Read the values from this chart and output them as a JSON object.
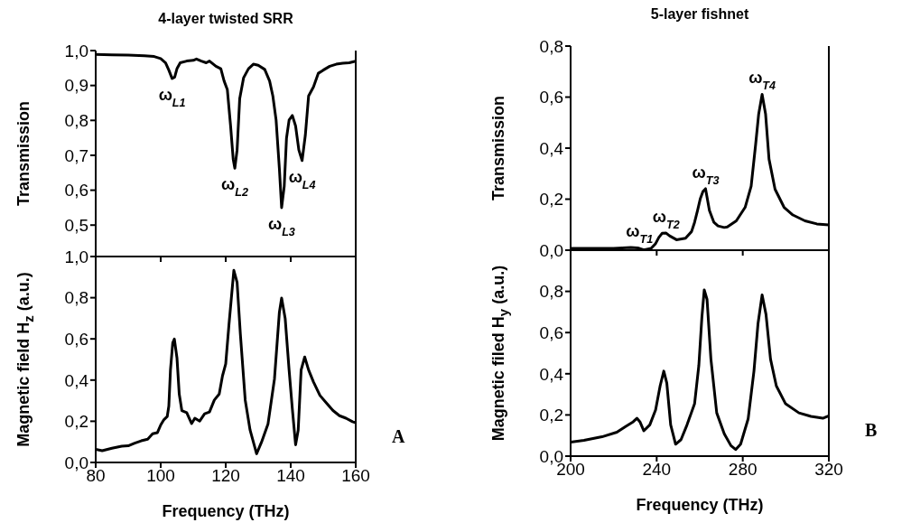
{
  "chart_data": [
    {
      "type": "line",
      "title": "4-layer twisted SRR",
      "ylabel": "Transmission",
      "x": [
        80,
        85,
        90,
        95,
        98,
        100,
        101.5,
        102.5,
        103.5,
        104.3,
        105,
        106,
        108,
        110,
        111,
        112.5,
        114,
        115,
        117,
        118.5,
        119.5,
        120.5,
        121.5,
        122.3,
        122.8,
        123.5,
        124.3,
        125.5,
        127,
        128.5,
        130,
        132,
        133.5,
        134.5,
        135.5,
        136.5,
        137.2,
        138,
        138.7,
        139.5,
        140.5,
        141.5,
        142.5,
        143.5,
        144.5,
        145.5,
        147,
        148.5,
        150,
        152,
        154,
        156,
        158,
        160
      ],
      "series": [
        {
          "color": "#000000",
          "values": [
            0.989,
            0.988,
            0.987,
            0.985,
            0.983,
            0.977,
            0.965,
            0.944,
            0.92,
            0.924,
            0.948,
            0.965,
            0.97,
            0.972,
            0.976,
            0.97,
            0.965,
            0.97,
            0.955,
            0.948,
            0.913,
            0.888,
            0.784,
            0.689,
            0.663,
            0.715,
            0.862,
            0.922,
            0.948,
            0.961,
            0.958,
            0.946,
            0.913,
            0.87,
            0.801,
            0.663,
            0.55,
            0.611,
            0.749,
            0.801,
            0.814,
            0.784,
            0.715,
            0.685,
            0.758,
            0.87,
            0.896,
            0.935,
            0.944,
            0.955,
            0.961,
            0.964,
            0.965,
            0.97
          ]
        }
      ],
      "xlim": [
        80,
        160
      ],
      "xticks": [
        80,
        100,
        120,
        140,
        160
      ],
      "ylim": [
        0.41,
        1.0
      ],
      "yticks": [
        {
          "value": 0.5,
          "label": "0,5"
        },
        {
          "value": 0.6,
          "label": "0,6"
        },
        {
          "value": 0.7,
          "label": "0,7"
        },
        {
          "value": 0.8,
          "label": "0,8"
        },
        {
          "value": 0.9,
          "label": "0,9"
        },
        {
          "value": 1.0,
          "label": "1,0"
        }
      ],
      "tick_labels": "y",
      "annotations": [
        {
          "text": "ω$_{L1}$",
          "x": 103.5,
          "y": 0.92
        },
        {
          "text": "ω$_{L2}$",
          "x": 122.8,
          "y": 0.663
        },
        {
          "text": "ω$_{L3}$",
          "x": 137.2,
          "y": 0.55
        },
        {
          "text": "ω$_{L4}$",
          "x": 143.5,
          "y": 0.685
        }
      ]
    },
    {
      "type": "line",
      "ylabel": "Magnetic field H$_{z}$ (a.u.)",
      "xlabel": "Frequency (THz)",
      "x": [
        80,
        82,
        85,
        88,
        90,
        92,
        94,
        96,
        97.5,
        99,
        100,
        101,
        102,
        102.5,
        103,
        103.7,
        104.2,
        105,
        105.7,
        106.5,
        108,
        109.5,
        110.5,
        112,
        113.5,
        115,
        116.5,
        118,
        119,
        120,
        121,
        122.5,
        123.5,
        124.5,
        126,
        127.5,
        129.5,
        131,
        133,
        135,
        136.5,
        137.2,
        138.3,
        139.5,
        140.5,
        141.5,
        142.3,
        143.2,
        144.3,
        145.5,
        147,
        149,
        151,
        153,
        155,
        157,
        159,
        160
      ],
      "series": [
        {
          "color": "#000000",
          "values": [
            0.064,
            0.057,
            0.069,
            0.079,
            0.081,
            0.094,
            0.105,
            0.113,
            0.139,
            0.145,
            0.182,
            0.208,
            0.223,
            0.274,
            0.449,
            0.581,
            0.599,
            0.508,
            0.332,
            0.252,
            0.242,
            0.189,
            0.215,
            0.201,
            0.236,
            0.245,
            0.303,
            0.332,
            0.42,
            0.479,
            0.669,
            0.933,
            0.874,
            0.625,
            0.303,
            0.157,
            0.042,
            0.098,
            0.186,
            0.406,
            0.728,
            0.798,
            0.698,
            0.449,
            0.259,
            0.086,
            0.157,
            0.449,
            0.512,
            0.449,
            0.391,
            0.325,
            0.288,
            0.252,
            0.227,
            0.215,
            0.198,
            0.193
          ]
        }
      ],
      "xlim": [
        80,
        160
      ],
      "xticks": [
        80,
        100,
        120,
        140,
        160
      ],
      "ylim": [
        0,
        1.0
      ],
      "yticks": [
        {
          "value": 0,
          "label": "0,0"
        },
        {
          "value": 0.2,
          "label": "0,2"
        },
        {
          "value": 0.4,
          "label": "0,4"
        },
        {
          "value": 0.6,
          "label": "0,6"
        },
        {
          "value": 0.8,
          "label": "0,8"
        },
        {
          "value": 1.0,
          "label": "1,0"
        }
      ],
      "annotations": [
        "A"
      ]
    },
    {
      "type": "line",
      "title": "5-layer fishnet",
      "ylabel": "Transmission",
      "x": [
        200,
        210,
        220,
        228,
        231.2,
        234,
        237.4,
        239.5,
        241,
        242.5,
        244.4,
        246,
        249.2,
        253.4,
        256.2,
        257.6,
        259,
        260.3,
        261.5,
        262.7,
        264.5,
        266.6,
        268.5,
        271.4,
        272.8,
        277,
        281.1,
        283.9,
        286,
        287.4,
        289,
        290.6,
        292.2,
        295,
        299.2,
        303.3,
        308.9,
        314.4,
        320
      ],
      "series": [
        {
          "color": "#000000",
          "values": [
            0.007,
            0.007,
            0.007,
            0.011,
            0.009,
            0.001,
            0.007,
            0.026,
            0.05,
            0.066,
            0.067,
            0.056,
            0.041,
            0.047,
            0.073,
            0.109,
            0.156,
            0.203,
            0.23,
            0.241,
            0.156,
            0.109,
            0.095,
            0.089,
            0.091,
            0.115,
            0.168,
            0.251,
            0.416,
            0.534,
            0.611,
            0.534,
            0.357,
            0.239,
            0.168,
            0.138,
            0.115,
            0.103,
            0.099
          ]
        }
      ],
      "xlim": [
        200,
        320
      ],
      "xticks": [
        200,
        240,
        280,
        320
      ],
      "ylim": [
        0,
        0.8
      ],
      "yticks": [
        {
          "value": 0,
          "label": "0,0"
        },
        {
          "value": 0.2,
          "label": "0,2"
        },
        {
          "value": 0.4,
          "label": "0,4"
        },
        {
          "value": 0.6,
          "label": "0,6"
        },
        {
          "value": 0.8,
          "label": "0,8"
        }
      ],
      "tick_labels": "y",
      "annotations": [
        {
          "text": "ω$_{T1}$",
          "x": 232,
          "y": 0.01
        },
        {
          "text": "ω$_{T2}$",
          "x": 244.4,
          "y": 0.067
        },
        {
          "text": "ω$_{T3}$",
          "x": 262.7,
          "y": 0.241
        },
        {
          "text": "ω$_{T4}$",
          "x": 289,
          "y": 0.611
        }
      ]
    },
    {
      "type": "line",
      "ylabel": "Magnetic filed H$_{y}$ (a.u.)",
      "xlabel": "Frequency (THz)",
      "x": [
        200,
        206.2,
        214.6,
        221.5,
        225.7,
        229.1,
        230.8,
        232.2,
        234,
        236.8,
        239.5,
        241.6,
        243.3,
        244.7,
        246.5,
        248.8,
        251.3,
        254.1,
        257.6,
        259.6,
        261,
        262.1,
        263.4,
        265.2,
        267.9,
        271.4,
        274.5,
        276.7,
        279,
        282.5,
        285.2,
        287.1,
        289,
        290.8,
        292.9,
        295.6,
        299.9,
        306.1,
        311.7,
        317.2,
        320
      ],
      "series": [
        {
          "color": "#000000",
          "values": [
            0.068,
            0.077,
            0.094,
            0.116,
            0.145,
            0.167,
            0.184,
            0.167,
            0.123,
            0.152,
            0.225,
            0.341,
            0.413,
            0.355,
            0.152,
            0.058,
            0.08,
            0.152,
            0.254,
            0.442,
            0.674,
            0.807,
            0.761,
            0.471,
            0.21,
            0.109,
            0.051,
            0.032,
            0.058,
            0.181,
            0.413,
            0.645,
            0.783,
            0.688,
            0.471,
            0.341,
            0.254,
            0.21,
            0.193,
            0.184,
            0.196
          ]
        }
      ],
      "xlim": [
        200,
        320
      ],
      "xticks": [
        200,
        240,
        280,
        320
      ],
      "ylim": [
        0,
        1.0
      ],
      "yticks": [
        {
          "value": 0,
          "label": "0,0"
        },
        {
          "value": 0.2,
          "label": "0,2"
        },
        {
          "value": 0.4,
          "label": "0,4"
        },
        {
          "value": 0.6,
          "label": "0,6"
        },
        {
          "value": 0.8,
          "label": "0,8"
        }
      ],
      "annotations": [
        "B"
      ]
    }
  ]
}
